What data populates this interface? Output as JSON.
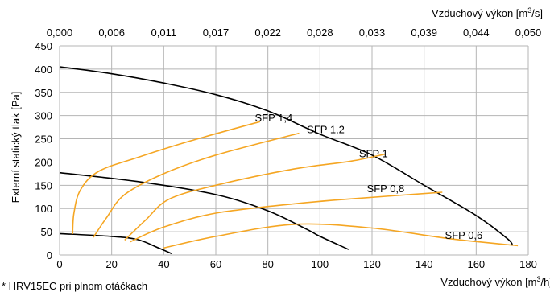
{
  "chart_data": {
    "type": "line",
    "xlabel": "Vzduchový výkon [m³/h]",
    "ylabel": "Externí statický tlak [Pa]",
    "x2label": "Vzduchový výkon [m³/s]",
    "xlim": [
      0,
      180
    ],
    "ylim": [
      0,
      450
    ],
    "x_ticks": [
      "0",
      "20",
      "40",
      "60",
      "80",
      "100",
      "120",
      "140",
      "160",
      "180"
    ],
    "y_ticks": [
      "0",
      "50",
      "100",
      "150",
      "200",
      "250",
      "300",
      "350",
      "400",
      "450"
    ],
    "x2_ticks": [
      "0,000",
      "0,006",
      "0,011",
      "0,017",
      "0,022",
      "0,028",
      "0,033",
      "0,039",
      "0,044",
      "0,050"
    ],
    "grid": true,
    "fan_curves": [
      {
        "color": "#000000",
        "points": [
          [
            0,
            405
          ],
          [
            20,
            390
          ],
          [
            40,
            370
          ],
          [
            60,
            345
          ],
          [
            80,
            310
          ],
          [
            100,
            260
          ],
          [
            120,
            215
          ],
          [
            140,
            150
          ],
          [
            160,
            85
          ],
          [
            172,
            35
          ],
          [
            174,
            20
          ]
        ]
      },
      {
        "color": "#000000",
        "points": [
          [
            0,
            177
          ],
          [
            30,
            158
          ],
          [
            60,
            130
          ],
          [
            80,
            95
          ],
          [
            95,
            55
          ],
          [
            100,
            40
          ],
          [
            111,
            12
          ]
        ]
      },
      {
        "color": "#000000",
        "points": [
          [
            0,
            46
          ],
          [
            20,
            40
          ],
          [
            30,
            33
          ],
          [
            38,
            15
          ],
          [
            43,
            3
          ]
        ]
      }
    ],
    "sfp_curves": [
      {
        "name": "SFP 1,4",
        "color": "#f5a623",
        "points": [
          [
            5,
            45
          ],
          [
            5.5,
            90
          ],
          [
            8,
            140
          ],
          [
            15,
            180
          ],
          [
            30,
            210
          ],
          [
            50,
            245
          ],
          [
            77,
            287
          ]
        ]
      },
      {
        "name": "SFP 1,2",
        "color": "#f5a623",
        "points": [
          [
            13,
            38
          ],
          [
            18,
            80
          ],
          [
            25,
            130
          ],
          [
            40,
            175
          ],
          [
            60,
            215
          ],
          [
            92,
            262
          ]
        ]
      },
      {
        "name": "SFP 1",
        "color": "#f5a623",
        "points": [
          [
            25,
            32
          ],
          [
            33,
            75
          ],
          [
            42,
            120
          ],
          [
            60,
            150
          ],
          [
            90,
            185
          ],
          [
            112,
            202
          ],
          [
            125,
            217
          ]
        ]
      },
      {
        "name": "SFP 0,8",
        "color": "#f5a623",
        "points": [
          [
            27,
            28
          ],
          [
            40,
            60
          ],
          [
            60,
            90
          ],
          [
            90,
            110
          ],
          [
            110,
            120
          ],
          [
            147,
            135
          ]
        ]
      },
      {
        "name": "SFP 0,6",
        "color": "#f5a623",
        "points": [
          [
            40,
            15
          ],
          [
            60,
            40
          ],
          [
            90,
            66
          ],
          [
            120,
            58
          ],
          [
            150,
            35
          ],
          [
            176,
            20
          ]
        ]
      }
    ],
    "annotations": [
      {
        "text": "SFP 1,4",
        "x": 75,
        "y": 287
      },
      {
        "text": "SFP 1,2",
        "x": 95,
        "y": 262
      },
      {
        "text": "SFP 1",
        "x": 115,
        "y": 210
      },
      {
        "text": "SFP 0,8",
        "x": 118,
        "y": 135
      },
      {
        "text": "SFP 0,6",
        "x": 148,
        "y": 35
      }
    ]
  },
  "footnote": "* HRV15EC pri plnom otáčkach"
}
